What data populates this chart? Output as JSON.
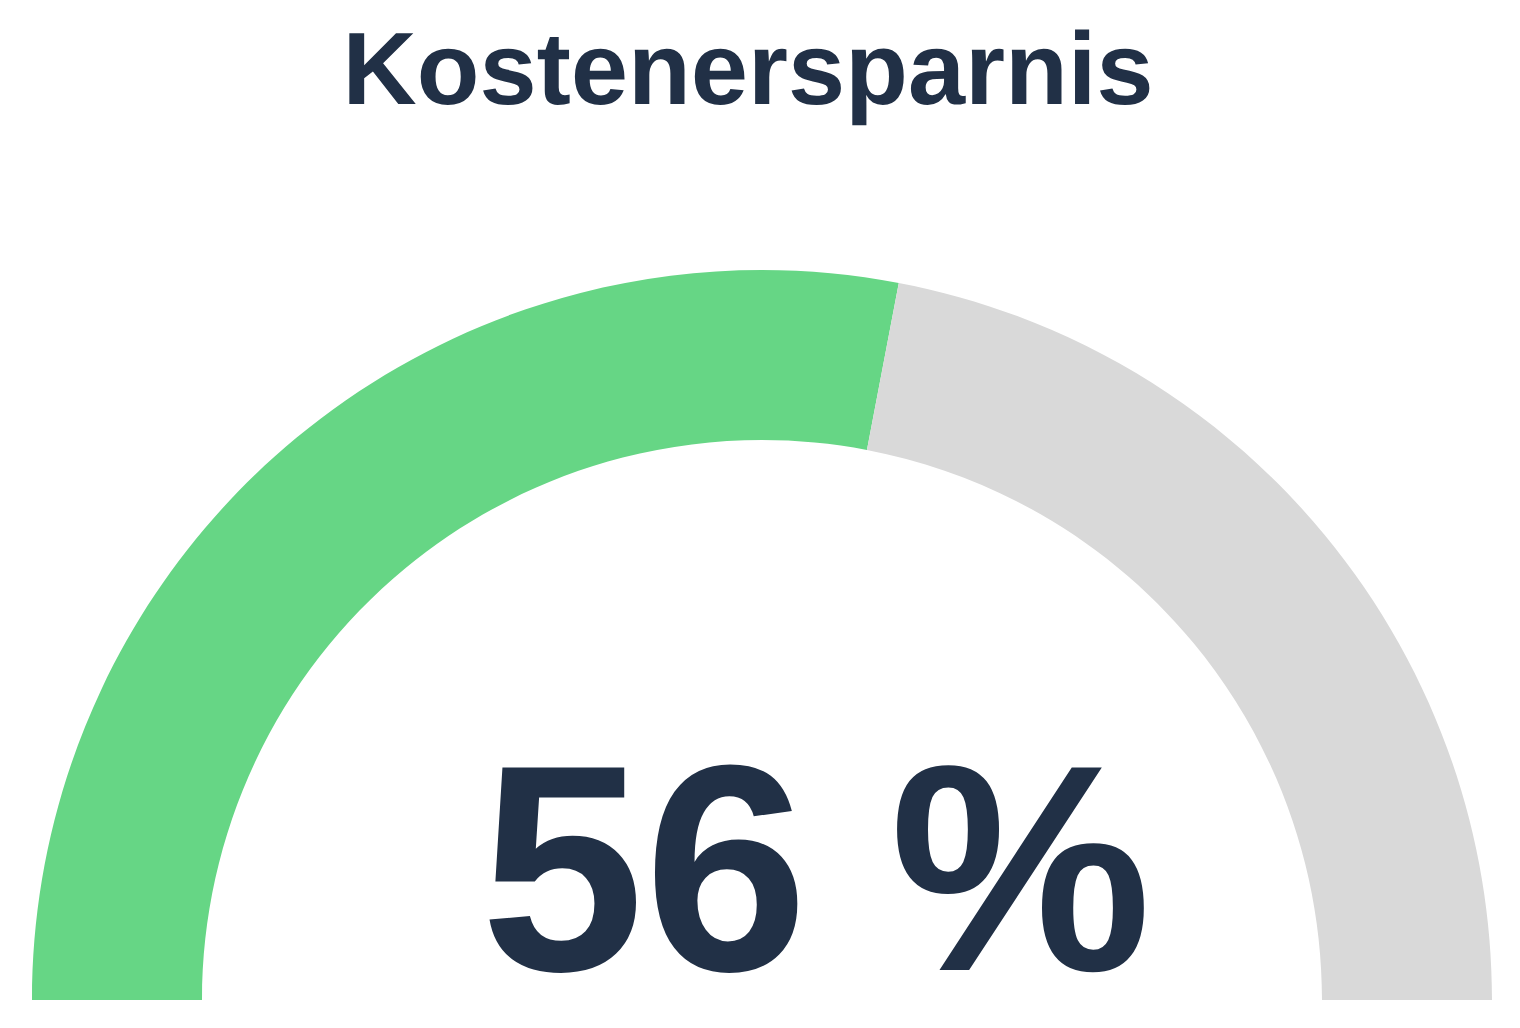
{
  "chart_data": {
    "type": "donut",
    "title": "Kostenersparnis",
    "categories": [
      null,
      null
    ],
    "values": [
      56,
      44
    ],
    "colors": [
      "#66d685",
      "#d9d9d9"
    ],
    "value_labels": [
      "56 %",
      null
    ]
  }
}
